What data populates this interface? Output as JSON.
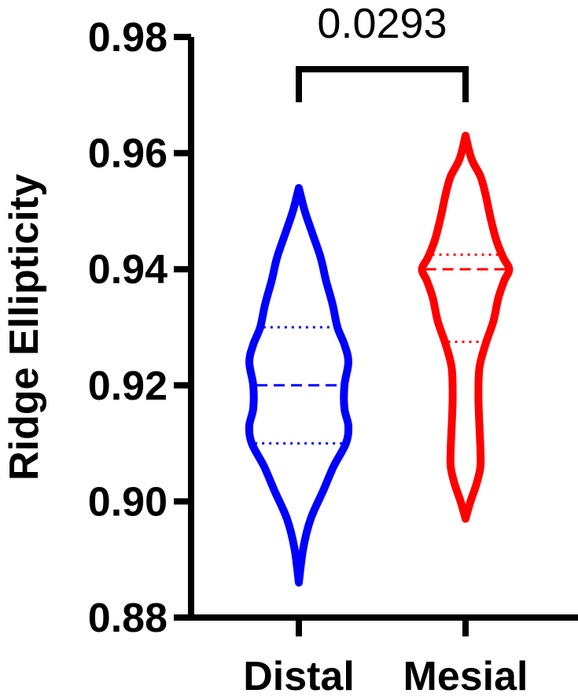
{
  "chart_data": {
    "type": "violin",
    "ylabel": "Ridge Ellipticity",
    "ylim": [
      0.88,
      0.98
    ],
    "yticks": [
      0.88,
      0.9,
      0.92,
      0.94,
      0.96,
      0.98
    ],
    "ytick_labels": [
      "0.88",
      "0.90",
      "0.92",
      "0.94",
      "0.96",
      "0.98"
    ],
    "categories": [
      "Distal",
      "Mesial"
    ],
    "series": [
      {
        "name": "Distal",
        "color": "#0000ff",
        "min": 0.886,
        "max": 0.954,
        "q1": 0.91,
        "median": 0.92,
        "q3": 0.93,
        "density": [
          [
            0.886,
            0.0
          ],
          [
            0.892,
            0.09
          ],
          [
            0.897,
            0.24
          ],
          [
            0.902,
            0.5
          ],
          [
            0.906,
            0.7
          ],
          [
            0.91,
            0.95
          ],
          [
            0.913,
            1.0
          ],
          [
            0.916,
            0.92
          ],
          [
            0.92,
            0.92
          ],
          [
            0.924,
            1.0
          ],
          [
            0.927,
            0.92
          ],
          [
            0.93,
            0.78
          ],
          [
            0.934,
            0.68
          ],
          [
            0.938,
            0.55
          ],
          [
            0.942,
            0.44
          ],
          [
            0.946,
            0.28
          ],
          [
            0.95,
            0.12
          ],
          [
            0.954,
            0.0
          ]
        ]
      },
      {
        "name": "Mesial",
        "color": "#ff0000",
        "min": 0.897,
        "max": 0.963,
        "q1": 0.9275,
        "median": 0.94,
        "q3": 0.9425,
        "density": [
          [
            0.897,
            0.0
          ],
          [
            0.9,
            0.1
          ],
          [
            0.903,
            0.22
          ],
          [
            0.906,
            0.3
          ],
          [
            0.909,
            0.3
          ],
          [
            0.913,
            0.28
          ],
          [
            0.918,
            0.26
          ],
          [
            0.923,
            0.28
          ],
          [
            0.927,
            0.4
          ],
          [
            0.931,
            0.56
          ],
          [
            0.935,
            0.66
          ],
          [
            0.938,
            0.78
          ],
          [
            0.94,
            0.88
          ],
          [
            0.942,
            0.76
          ],
          [
            0.945,
            0.62
          ],
          [
            0.949,
            0.5
          ],
          [
            0.953,
            0.4
          ],
          [
            0.956,
            0.3
          ],
          [
            0.959,
            0.12
          ],
          [
            0.963,
            0.0
          ]
        ]
      }
    ],
    "comparison": {
      "from": "Distal",
      "to": "Mesial",
      "label": "0.0293"
    }
  }
}
